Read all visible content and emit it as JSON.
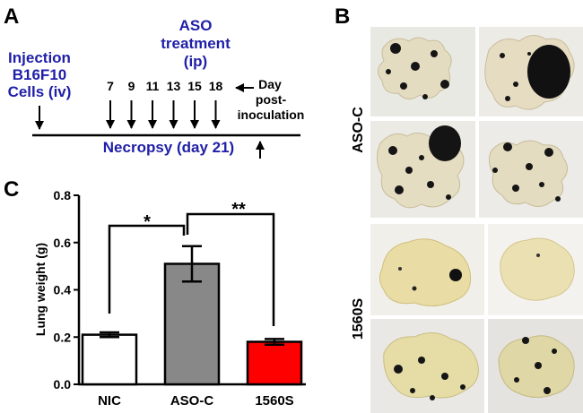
{
  "panel_a": {
    "letter": "A",
    "injection_line1": "Injection",
    "injection_line2": "B16F10",
    "injection_line3": "Cells (iv)",
    "aso_line1": "ASO",
    "aso_line2": "treatment",
    "aso_line3": "(ip)",
    "days": [
      "7",
      "9",
      "11",
      "13",
      "15",
      "18"
    ],
    "day_label_line1": "Day",
    "day_label_line2": "post-",
    "day_label_line3": "inoculation",
    "necropsy": "Necropsy (day 21)",
    "blue_color": "#1f1fa8"
  },
  "panel_b": {
    "letter": "B",
    "label_top": "ASO-C",
    "label_bottom": "1560S"
  },
  "panel_c": {
    "letter": "C",
    "sig_left": "*",
    "sig_right": "**"
  },
  "chart_data": {
    "type": "bar",
    "categories": [
      "NIC",
      "ASO-C",
      "1560S"
    ],
    "values": [
      0.21,
      0.51,
      0.18
    ],
    "errors": [
      0.01,
      0.075,
      0.012
    ],
    "bar_colors": [
      "#ffffff",
      "#888888",
      "#ff0000"
    ],
    "xlabel": "",
    "ylabel": "Lung weight (g)",
    "ylim": [
      0,
      0.8
    ],
    "yticks": [
      "0.0",
      "0.2",
      "0.4",
      "0.6",
      "0.8"
    ]
  }
}
